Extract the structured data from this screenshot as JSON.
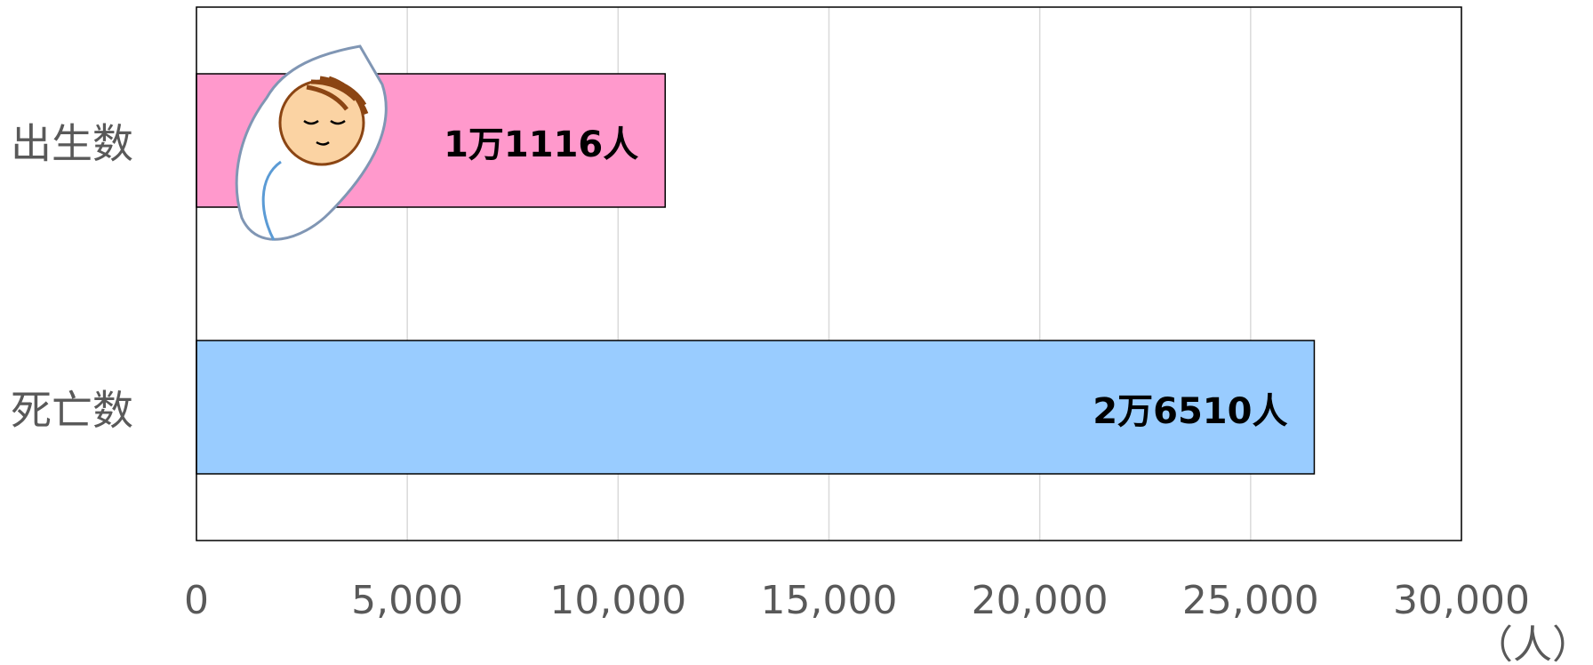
{
  "chart_data": {
    "type": "bar",
    "orientation": "horizontal",
    "categories": [
      "出生数",
      "死亡数"
    ],
    "values": [
      11116,
      26510
    ],
    "value_labels": [
      "1万1116人",
      "2万6510人"
    ],
    "colors": [
      "#ff99cc",
      "#99ccff"
    ],
    "xlim": [
      0,
      30000
    ],
    "xticks": [
      0,
      {
        "value": 5000,
        "label": "5,000"
      },
      {
        "value": 10000,
        "label": "10,000"
      },
      {
        "value": 15000,
        "label": "15,000"
      },
      {
        "value": 20000,
        "label": "20,000"
      },
      {
        "value": 25000,
        "label": "25,000"
      },
      {
        "value": 30000,
        "label": "30,000"
      }
    ],
    "x_label": "（人）",
    "grid": true
  }
}
